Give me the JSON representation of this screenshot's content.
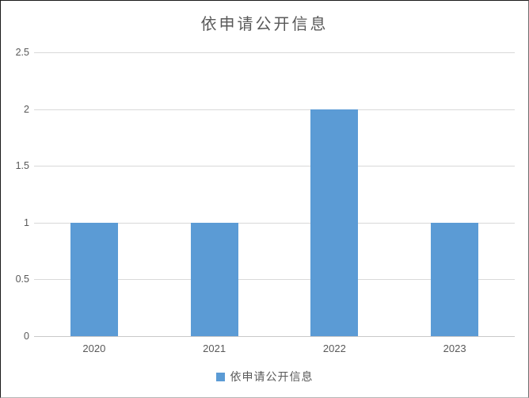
{
  "chart_data": {
    "type": "bar",
    "title": "依申请公开信息",
    "categories": [
      "2020",
      "2021",
      "2022",
      "2023"
    ],
    "series": [
      {
        "name": "依申请公开信息",
        "values": [
          1,
          1,
          2,
          1
        ]
      }
    ],
    "xlabel": "",
    "ylabel": "",
    "ylim": [
      0,
      2.5
    ],
    "yticks": [
      0,
      0.5,
      1,
      1.5,
      2,
      2.5
    ],
    "grid": true,
    "legend_position": "bottom",
    "bar_color": "#5B9BD5",
    "gridline_color": "#d9d9d9",
    "text_color": "#595959"
  },
  "legend": {
    "label": "依申请公开信息",
    "swatch_color": "#5B9BD5"
  }
}
